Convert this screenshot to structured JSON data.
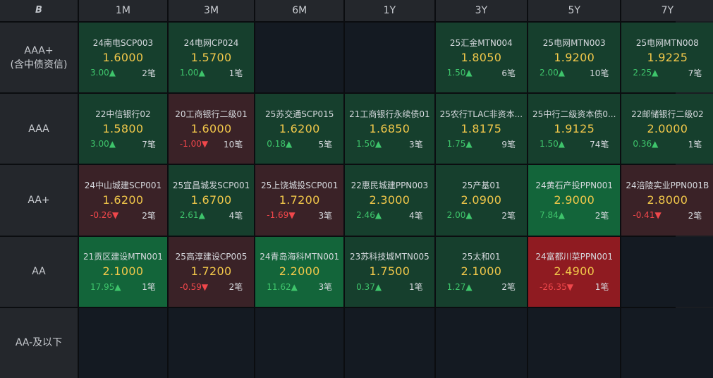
{
  "corner": {
    "icon": "b-logo-icon",
    "label": "B"
  },
  "tenors": [
    "1M",
    "3M",
    "6M",
    "1Y",
    "3Y",
    "5Y",
    "7Y"
  ],
  "ratings": [
    {
      "line1": "AAA+",
      "line2": "(含中债资信)"
    },
    {
      "line1": "AAA",
      "line2": ""
    },
    {
      "line1": "AA+",
      "line2": ""
    },
    {
      "line1": "AA",
      "line2": ""
    },
    {
      "line1": "AA-及以下",
      "line2": ""
    }
  ],
  "cells": [
    [
      {
        "name": "24南电SCP003",
        "rate": "1.6000",
        "chg": "3.00▲",
        "dir": "up",
        "cnt": "2笔"
      },
      {
        "name": "24电网CP024",
        "rate": "1.5700",
        "chg": "1.00▲",
        "dir": "up",
        "cnt": "1笔"
      },
      null,
      null,
      {
        "name": "25汇金MTN004",
        "rate": "1.8050",
        "chg": "1.50▲",
        "dir": "up",
        "cnt": "6笔"
      },
      {
        "name": "25电网MTN003",
        "rate": "1.9200",
        "chg": "2.00▲",
        "dir": "up",
        "cnt": "10笔"
      },
      {
        "name": "25电网MTN008",
        "rate": "1.9225",
        "chg": "2.25▲",
        "dir": "up",
        "cnt": "7笔"
      }
    ],
    [
      {
        "name": "22中信银行02",
        "rate": "1.5800",
        "chg": "3.00▲",
        "dir": "up",
        "cnt": "7笔"
      },
      {
        "name": "20工商银行二级01",
        "rate": "1.6000",
        "chg": "-1.00▼",
        "dir": "down",
        "cnt": "10笔"
      },
      {
        "name": "25苏交通SCP015",
        "rate": "1.6200",
        "chg": "0.18▲",
        "dir": "up",
        "cnt": "5笔"
      },
      {
        "name": "21工商银行永续债01",
        "rate": "1.6850",
        "chg": "1.50▲",
        "dir": "up",
        "cnt": "3笔"
      },
      {
        "name": "25农行TLAC非资本...",
        "rate": "1.8175",
        "chg": "1.75▲",
        "dir": "up",
        "cnt": "9笔"
      },
      {
        "name": "25中行二级资本债0...",
        "rate": "1.9125",
        "chg": "1.50▲",
        "dir": "up",
        "cnt": "74笔"
      },
      {
        "name": "22邮储银行二级02",
        "rate": "2.0000",
        "chg": "0.36▲",
        "dir": "up",
        "cnt": "1笔"
      }
    ],
    [
      {
        "name": "24中山城建SCP001",
        "rate": "1.6200",
        "chg": "-0.26▼",
        "dir": "down",
        "cnt": "2笔"
      },
      {
        "name": "25宜昌城发SCP001",
        "rate": "1.6700",
        "chg": "2.61▲",
        "dir": "up",
        "cnt": "4笔"
      },
      {
        "name": "25上饶城投SCP001",
        "rate": "1.7200",
        "chg": "-1.69▼",
        "dir": "down",
        "cnt": "3笔"
      },
      {
        "name": "22惠民城建PPN003",
        "rate": "2.3000",
        "chg": "2.46▲",
        "dir": "up",
        "cnt": "4笔"
      },
      {
        "name": "25产基01",
        "rate": "2.0900",
        "chg": "2.00▲",
        "dir": "up",
        "cnt": "2笔"
      },
      {
        "name": "24黄石产投PPN001",
        "rate": "2.9000",
        "chg": "7.84▲",
        "dir": "up-strong",
        "cnt": "2笔"
      },
      {
        "name": "24涪陵实业PPN001B",
        "rate": "2.8000",
        "chg": "-0.41▼",
        "dir": "down",
        "cnt": "2笔"
      }
    ],
    [
      {
        "name": "21贡区建设MTN001",
        "rate": "2.1000",
        "chg": "17.95▲",
        "dir": "up-strong",
        "cnt": "1笔"
      },
      {
        "name": "25高淳建设CP005",
        "rate": "1.7200",
        "chg": "-0.59▼",
        "dir": "down",
        "cnt": "2笔"
      },
      {
        "name": "24青岛海科MTN001",
        "rate": "2.2000",
        "chg": "11.62▲",
        "dir": "up-strong",
        "cnt": "3笔"
      },
      {
        "name": "23苏科技城MTN005",
        "rate": "1.7500",
        "chg": "0.37▲",
        "dir": "up",
        "cnt": "1笔"
      },
      {
        "name": "25太和01",
        "rate": "2.1000",
        "chg": "1.27▲",
        "dir": "up",
        "cnt": "2笔"
      },
      {
        "name": "24富都川菜PPN001",
        "rate": "2.4900",
        "chg": "-26.35▼",
        "dir": "down-strong",
        "cnt": "1笔"
      },
      null
    ],
    [
      null,
      null,
      null,
      null,
      null,
      null,
      null
    ]
  ],
  "colors": {
    "up": "#3ec46b",
    "down": "#f0474b",
    "rate": "#f2c84a"
  }
}
